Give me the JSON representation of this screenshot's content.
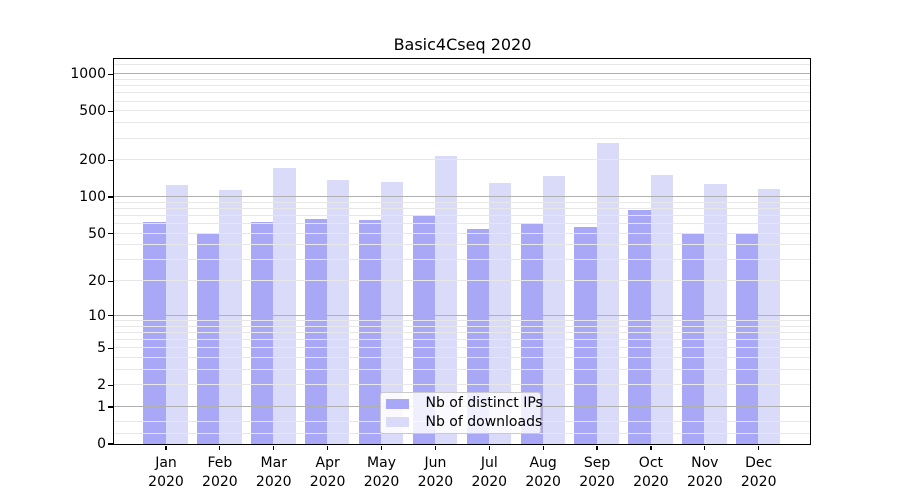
{
  "title": "Basic4Cseq 2020",
  "legend": {
    "items": [
      {
        "label": "Nb of distinct IPs",
        "color": "#a8a8f6"
      },
      {
        "label": "Nb of downloads",
        "color": "#dadaf9"
      }
    ]
  },
  "chart_data": {
    "type": "bar",
    "title": "Basic4Cseq 2020",
    "categories": [
      "Jan 2020",
      "Feb 2020",
      "Mar 2020",
      "Apr 2020",
      "May 2020",
      "Jun 2020",
      "Jul 2020",
      "Aug 2020",
      "Sep 2020",
      "Oct 2020",
      "Nov 2020",
      "Dec 2020"
    ],
    "series": [
      {
        "name": "Nb of distinct IPs",
        "color": "#a8a8f6",
        "values": [
          62,
          49,
          62,
          66,
          64,
          71,
          54,
          61,
          56,
          77,
          49,
          50
        ]
      },
      {
        "name": "Nb of downloads",
        "color": "#dadaf9",
        "values": [
          125,
          114,
          170,
          136,
          131,
          214,
          129,
          147,
          275,
          149,
          127,
          116
        ]
      }
    ],
    "xlabel": "",
    "ylabel": "",
    "yscale": "symlog (log10 of 1+y)",
    "ylim": [
      0,
      1320
    ],
    "y_ticks": [
      0,
      1,
      2,
      5,
      10,
      20,
      50,
      100,
      200,
      500,
      1000
    ],
    "grid": {
      "on": true,
      "major_lines": [
        1,
        10,
        100,
        1000
      ],
      "minor_lines": [
        0.2,
        0.5,
        2,
        3,
        4,
        5,
        6,
        7,
        8,
        9,
        20,
        30,
        40,
        50,
        60,
        70,
        80,
        90,
        200,
        300,
        400,
        500,
        600,
        700,
        800,
        900,
        1200
      ]
    },
    "legend_position": "inside axes, lower center"
  },
  "colors": {
    "background": "#ffffff",
    "major_grid": "#b0b0b0",
    "minor_grid": "#e7e7e7",
    "spine": "#000000",
    "text": "#000000"
  }
}
